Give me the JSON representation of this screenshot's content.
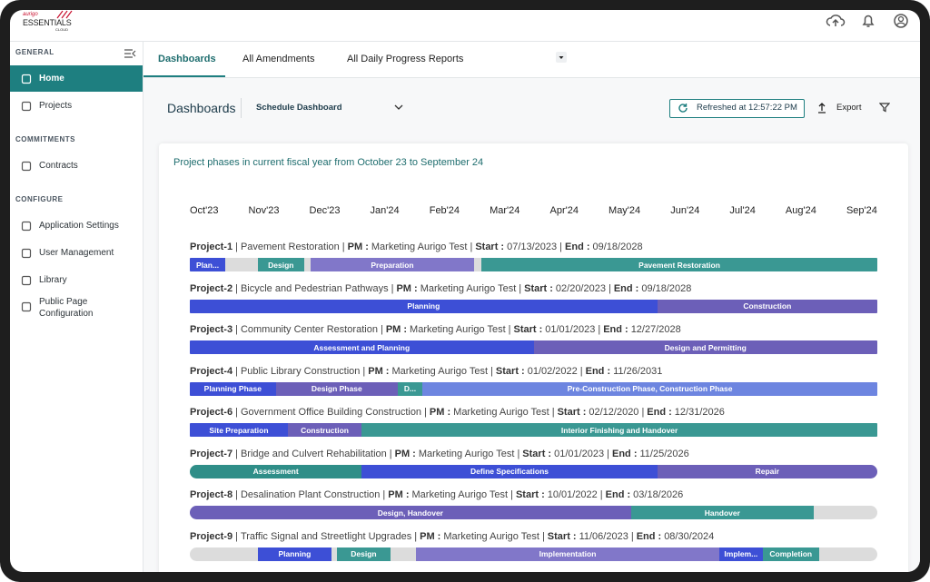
{
  "logo": {
    "brand": "aurigo",
    "product": "ESSENTIALS",
    "edition": "CLOUD"
  },
  "sidebar": {
    "sections": [
      {
        "heading": "GENERAL",
        "items": [
          "Home",
          "Projects"
        ]
      },
      {
        "heading": "COMMITMENTS",
        "items": [
          "Contracts"
        ]
      },
      {
        "heading": "CONFIGURE",
        "items": [
          "Application Settings",
          "User Management",
          "Library",
          "Public Page Configuration"
        ]
      }
    ]
  },
  "tabs": [
    "Dashboards",
    "All Amendments",
    "All Daily Progress Reports"
  ],
  "toolbar": {
    "title": "Dashboards",
    "dropdown": "Schedule Dashboard",
    "refreshed": "Refreshed at 12:57:22 PM",
    "export": "Export"
  },
  "card": {
    "title": "Project phases in current fiscal year from October 23 to September 24",
    "months": [
      "Oct'23",
      "Nov'23",
      "Dec'23",
      "Jan'24",
      "Feb'24",
      "Mar'24",
      "Apr'24",
      "May'24",
      "Jun'24",
      "Jul'24",
      "Aug'24",
      "Sep'24"
    ],
    "separator": "|",
    "pm_label": "PM :",
    "start_label": "Start :",
    "end_label": "End :",
    "projects": [
      {
        "id": "Project-1",
        "name": "Pavement Restoration",
        "pm": "Marketing Aurigo Test",
        "start": "07/13/2023",
        "end": "09/18/2028",
        "phases": [
          {
            "label": "Plan...",
            "from": 0,
            "to": 0.62,
            "color": "#3d4fd6"
          },
          {
            "label": "Design",
            "from": 1.19,
            "to": 1.99,
            "color": "#3a9893"
          },
          {
            "label": "Preparation",
            "from": 2.11,
            "to": 4.96,
            "color": "#8177c9"
          },
          {
            "label": "Pavement Restoration",
            "from": 5.09,
            "to": 12,
            "color": "#3a9893"
          }
        ]
      },
      {
        "id": "Project-2",
        "name": "Bicycle and Pedestrian Pathways",
        "pm": "Marketing Aurigo Test",
        "start": "02/20/2023",
        "end": "09/18/2028",
        "phases": [
          {
            "label": "Planning",
            "from": 0,
            "to": 8.16,
            "color": "#3d4fd6"
          },
          {
            "label": "Construction",
            "from": 8.16,
            "to": 12,
            "color": "#6c5fb8"
          }
        ]
      },
      {
        "id": "Project-3",
        "name": "Community Center Restoration",
        "pm": "Marketing Aurigo Test",
        "start": "01/01/2023",
        "end": "12/27/2028",
        "phases": [
          {
            "label": "Assessment and Planning",
            "from": 0,
            "to": 6,
            "color": "#3d4fd6"
          },
          {
            "label": "Design and Permitting",
            "from": 6,
            "to": 12,
            "color": "#6c5fb8"
          }
        ]
      },
      {
        "id": "Project-4",
        "name": "Public Library Construction",
        "pm": "Marketing Aurigo Test",
        "start": "01/02/2022",
        "end": "11/26/2031",
        "phases": [
          {
            "label": "Planning Phase",
            "from": 0,
            "to": 1.5,
            "color": "#3d4fd6"
          },
          {
            "label": "Design Phase",
            "from": 1.5,
            "to": 3.63,
            "color": "#6c5fb8"
          },
          {
            "label": "D...",
            "from": 3.63,
            "to": 4.06,
            "color": "#3a9893"
          },
          {
            "label": "Pre-Construction Phase, Construction Phase",
            "from": 4.06,
            "to": 12,
            "color": "#6d85e0"
          }
        ]
      },
      {
        "id": "Project-6",
        "name": "Government Office Building Construction",
        "pm": "Marketing Aurigo Test",
        "start": "02/12/2020",
        "end": "12/31/2026",
        "phases": [
          {
            "label": "Site Preparation",
            "from": 0,
            "to": 1.71,
            "color": "#3d4fd6"
          },
          {
            "label": "Construction",
            "from": 1.71,
            "to": 3,
            "color": "#6c5fb8"
          },
          {
            "label": "Interior Finishing and Handover",
            "from": 3,
            "to": 12,
            "color": "#3a9893"
          }
        ]
      },
      {
        "id": "Project-7",
        "name": "Bridge and Culvert Rehabilitation",
        "pm": "Marketing Aurigo Test",
        "start": "01/01/2023",
        "end": "11/25/2026",
        "phases": [
          {
            "label": "Assessment",
            "from": 0,
            "to": 3,
            "color": "#2f8e88"
          },
          {
            "label": "Define Specifications",
            "from": 3,
            "to": 8.16,
            "color": "#3d4fd6"
          },
          {
            "label": "Repair",
            "from": 8.16,
            "to": 12,
            "color": "#6c5fb8"
          }
        ]
      },
      {
        "id": "Project-8",
        "name": "Desalination Plant Construction",
        "pm": "Marketing Aurigo Test",
        "start": "10/01/2022",
        "end": "03/18/2026",
        "phases": [
          {
            "label": "Design, Handover",
            "from": 0,
            "to": 7.7,
            "color": "#6c5fb8"
          },
          {
            "label": "Handover",
            "from": 7.7,
            "to": 10.89,
            "color": "#3a9893"
          }
        ]
      },
      {
        "id": "Project-9",
        "name": "Traffic Signal and Streetlight Upgrades",
        "pm": "Marketing Aurigo Test",
        "start": "11/06/2023",
        "end": "08/30/2024",
        "phases": [
          {
            "label": "Planning",
            "from": 1.19,
            "to": 2.47,
            "color": "#3d4fd6"
          },
          {
            "label": "Design",
            "from": 2.57,
            "to": 3.5,
            "color": "#3a9893"
          },
          {
            "label": "Implementation",
            "from": 3.95,
            "to": 9.24,
            "color": "#8177c9"
          },
          {
            "label": "Implem...",
            "from": 9.24,
            "to": 10,
            "color": "#3d4fd6"
          },
          {
            "label": "Completion",
            "from": 10,
            "to": 10.98,
            "color": "#3a9893"
          }
        ]
      }
    ]
  }
}
